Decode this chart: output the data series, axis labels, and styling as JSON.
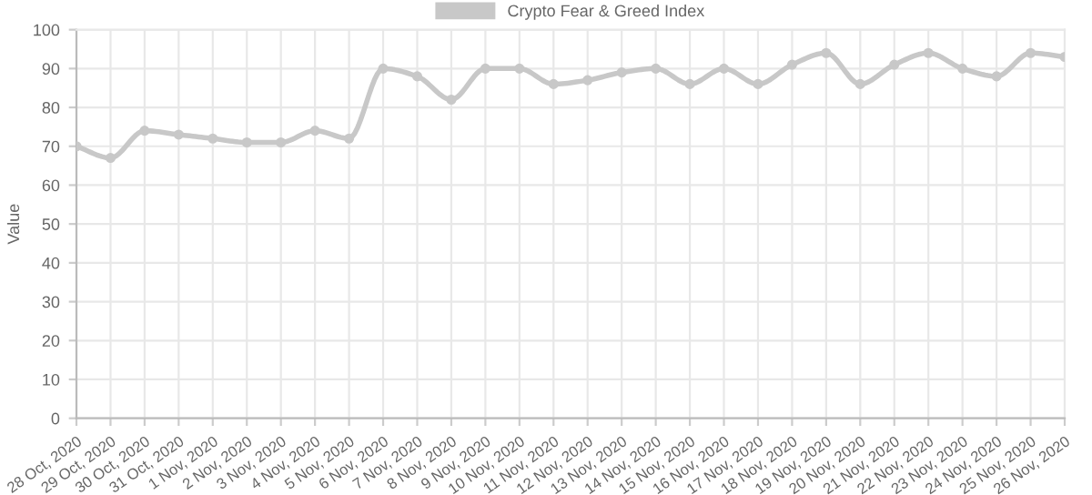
{
  "chart_data": {
    "type": "line",
    "ylabel": "Value",
    "legend": "top",
    "categories": [
      "28 Oct, 2020",
      "29 Oct, 2020",
      "30 Oct, 2020",
      "31 Oct, 2020",
      "1 Nov, 2020",
      "2 Nov, 2020",
      "3 Nov, 2020",
      "4 Nov, 2020",
      "5 Nov, 2020",
      "6 Nov, 2020",
      "7 Nov, 2020",
      "8 Nov, 2020",
      "9 Nov, 2020",
      "10 Nov, 2020",
      "11 Nov, 2020",
      "12 Nov, 2020",
      "13 Nov, 2020",
      "14 Nov, 2020",
      "15 Nov, 2020",
      "16 Nov, 2020",
      "17 Nov, 2020",
      "18 Nov, 2020",
      "19 Nov, 2020",
      "20 Nov, 2020",
      "21 Nov, 2020",
      "22 Nov, 2020",
      "23 Nov, 2020",
      "24 Nov, 2020",
      "25 Nov, 2020",
      "26 Nov, 2020"
    ],
    "series": [
      {
        "name": "Crypto Fear & Greed Index",
        "color": "#c8c8c8",
        "values": [
          70,
          67,
          74,
          73,
          72,
          71,
          71,
          74,
          72,
          90,
          88,
          82,
          90,
          90,
          86,
          87,
          89,
          90,
          86,
          90,
          86,
          91,
          94,
          86,
          91,
          94,
          90,
          88,
          94,
          93
        ]
      }
    ],
    "ylim": [
      0,
      100
    ],
    "yticks": [
      0,
      10,
      20,
      30,
      40,
      50,
      60,
      70,
      80,
      90,
      100
    ],
    "grid": true,
    "marker": "circle",
    "line_style": "solid"
  }
}
